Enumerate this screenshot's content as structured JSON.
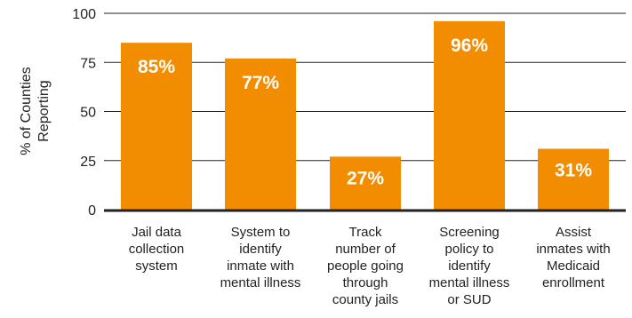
{
  "chart_data": {
    "type": "bar",
    "ylabel": [
      "% of Counties",
      "Reporting"
    ],
    "ylim": [
      0,
      100
    ],
    "yticks": [
      "0",
      "25",
      "50",
      "75",
      "100"
    ],
    "grid": true,
    "categories": [
      [
        "Jail data",
        "collection",
        "system"
      ],
      [
        "System to",
        "identify",
        "inmate with",
        "mental illness"
      ],
      [
        "Track",
        "number of",
        "people going",
        "through",
        "county jails"
      ],
      [
        "Screening",
        "policy to",
        "identify",
        "mental illness",
        "or SUD"
      ],
      [
        "Assist",
        "inmates with",
        "Medicaid",
        "enrollment"
      ]
    ],
    "values": [
      85,
      77,
      27,
      96,
      31
    ],
    "data_labels": [
      "85%",
      "77%",
      "27%",
      "96%",
      "31%"
    ],
    "colors": {
      "bar": "#F28C00",
      "axis": "#222222",
      "grid": "#222222",
      "text": "#222222"
    }
  }
}
